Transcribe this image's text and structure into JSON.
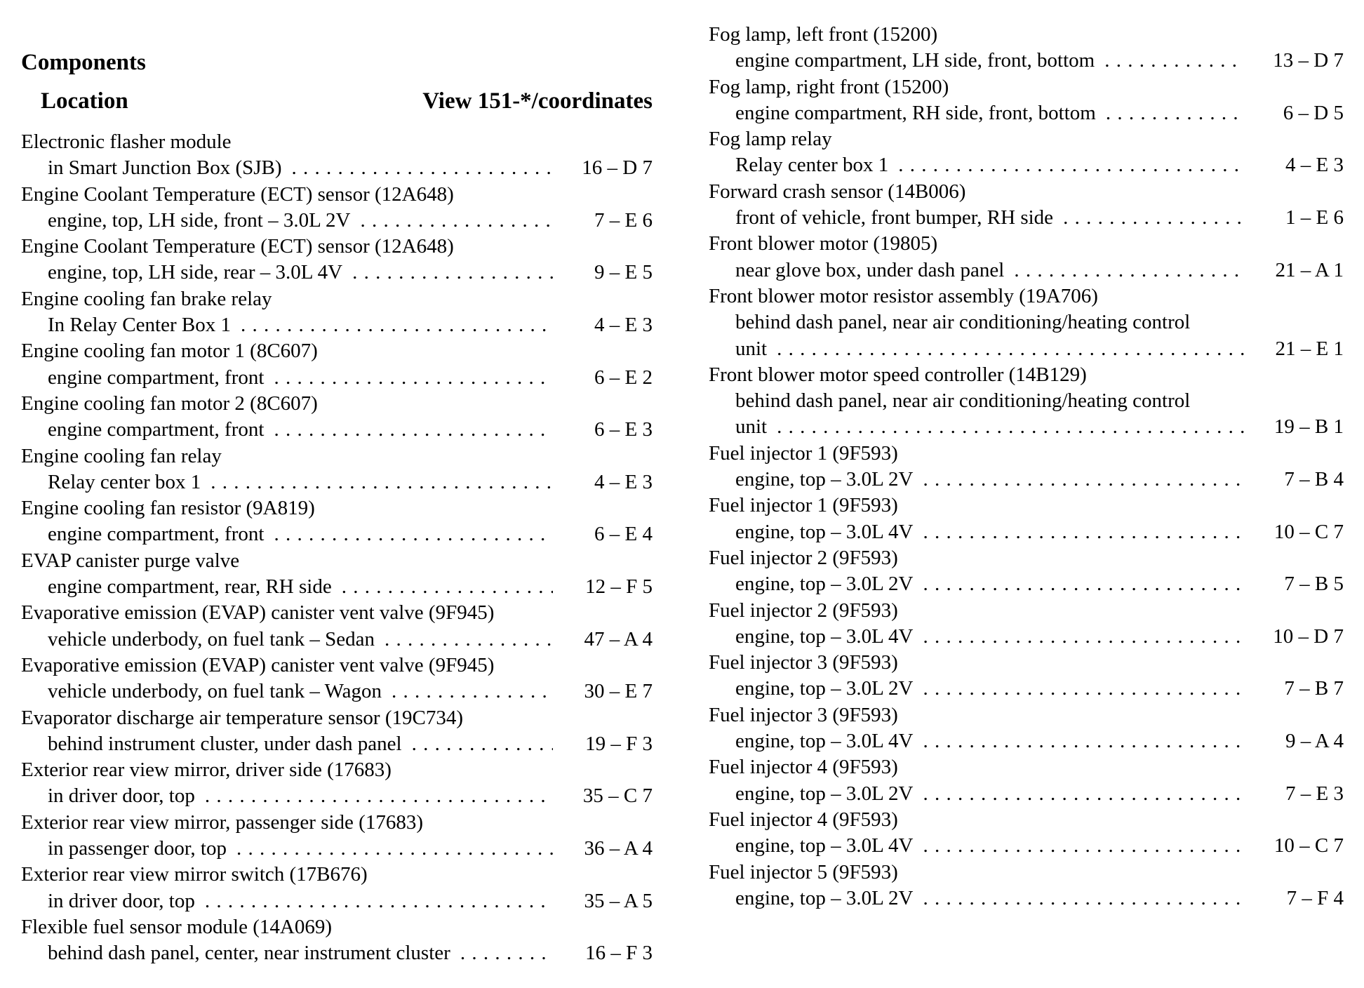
{
  "page": {
    "title": "Components",
    "column_headers": {
      "location": "Location",
      "view": "View 151-*/coordinates"
    }
  },
  "columns": {
    "left": {
      "entries": [
        {
          "name": "Electronic flasher module",
          "location_lines": [
            "in Smart Junction Box (SJB)"
          ],
          "coord": "16 – D 7"
        },
        {
          "name": "Engine Coolant Temperature (ECT) sensor (12A648)",
          "location_lines": [
            "engine, top, LH side, front – 3.0L 2V"
          ],
          "coord": "7 – E 6"
        },
        {
          "name": "Engine Coolant Temperature (ECT) sensor (12A648)",
          "location_lines": [
            "engine, top, LH side, rear – 3.0L 4V"
          ],
          "coord": "9 – E 5"
        },
        {
          "name": "Engine cooling fan brake relay",
          "location_lines": [
            "In Relay Center Box 1"
          ],
          "coord": "4 – E 3"
        },
        {
          "name": "Engine cooling fan motor 1 (8C607)",
          "location_lines": [
            "engine compartment, front"
          ],
          "coord": "6 – E 2"
        },
        {
          "name": "Engine cooling fan motor 2 (8C607)",
          "location_lines": [
            "engine compartment, front"
          ],
          "coord": "6 – E 3"
        },
        {
          "name": "Engine cooling fan relay",
          "location_lines": [
            "Relay center box 1"
          ],
          "coord": "4 – E 3"
        },
        {
          "name": "Engine cooling fan resistor (9A819)",
          "location_lines": [
            "engine compartment, front"
          ],
          "coord": "6 – E 4"
        },
        {
          "name": "EVAP canister purge valve",
          "location_lines": [
            "engine compartment, rear, RH side"
          ],
          "coord": "12 – F 5"
        },
        {
          "name": "Evaporative emission (EVAP) canister vent valve (9F945)",
          "location_lines": [
            "vehicle underbody, on fuel tank – Sedan"
          ],
          "coord": "47 – A 4"
        },
        {
          "name": "Evaporative emission (EVAP) canister vent valve (9F945)",
          "location_lines": [
            "vehicle underbody, on fuel tank – Wagon"
          ],
          "coord": "30 – E 7"
        },
        {
          "name": "Evaporator discharge air temperature sensor (19C734)",
          "location_lines": [
            "behind instrument cluster, under dash panel"
          ],
          "coord": "19 – F 3"
        },
        {
          "name": "Exterior rear view mirror, driver side (17683)",
          "location_lines": [
            "in driver door, top"
          ],
          "coord": "35 – C 7"
        },
        {
          "name": "Exterior rear view mirror, passenger side (17683)",
          "location_lines": [
            "in passenger door, top"
          ],
          "coord": "36 – A 4"
        },
        {
          "name": "Exterior rear view mirror switch (17B676)",
          "location_lines": [
            "in driver door, top"
          ],
          "coord": "35 – A 5"
        },
        {
          "name": "Flexible fuel sensor module (14A069)",
          "location_lines": [
            "behind dash panel, center, near instrument cluster"
          ],
          "coord": "16 – F 3"
        }
      ]
    },
    "right": {
      "entries": [
        {
          "name": "Fog lamp, left front (15200)",
          "location_lines": [
            "engine compartment, LH side, front, bottom"
          ],
          "coord": "13 – D 7"
        },
        {
          "name": "Fog lamp, right front (15200)",
          "location_lines": [
            "engine compartment, RH side, front, bottom"
          ],
          "coord": "6 – D 5"
        },
        {
          "name": "Fog lamp relay",
          "location_lines": [
            "Relay center box 1"
          ],
          "coord": "4 – E 3"
        },
        {
          "name": "Forward crash sensor (14B006)",
          "location_lines": [
            "front of vehicle, front bumper, RH side"
          ],
          "coord": "1 – E 6"
        },
        {
          "name": "Front blower motor (19805)",
          "location_lines": [
            "near glove box, under dash panel"
          ],
          "coord": "21 – A 1"
        },
        {
          "name": "Front blower motor resistor assembly (19A706)",
          "location_lines": [
            "behind dash panel, near air conditioning/heating control",
            "unit"
          ],
          "coord": "21 – E 1"
        },
        {
          "name": "Front blower motor speed controller (14B129)",
          "location_lines": [
            "behind dash panel, near air conditioning/heating control",
            "unit"
          ],
          "coord": "19 – B 1"
        },
        {
          "name": "Fuel injector 1 (9F593)",
          "location_lines": [
            "engine, top – 3.0L 2V"
          ],
          "coord": "7 – B 4"
        },
        {
          "name": "Fuel injector 1 (9F593)",
          "location_lines": [
            "engine, top – 3.0L 4V"
          ],
          "coord": "10 – C 7"
        },
        {
          "name": "Fuel injector 2 (9F593)",
          "location_lines": [
            "engine, top – 3.0L 2V"
          ],
          "coord": "7 – B 5"
        },
        {
          "name": "Fuel injector 2 (9F593)",
          "location_lines": [
            "engine, top – 3.0L 4V"
          ],
          "coord": "10 – D 7"
        },
        {
          "name": "Fuel injector 3 (9F593)",
          "location_lines": [
            "engine, top – 3.0L 2V"
          ],
          "coord": "7 – B 7"
        },
        {
          "name": "Fuel injector 3 (9F593)",
          "location_lines": [
            "engine, top – 3.0L 4V"
          ],
          "coord": "9 – A 4"
        },
        {
          "name": "Fuel injector 4 (9F593)",
          "location_lines": [
            "engine, top – 3.0L 2V"
          ],
          "coord": "7 – E 3"
        },
        {
          "name": "Fuel injector 4 (9F593)",
          "location_lines": [
            "engine, top – 3.0L 4V"
          ],
          "coord": "10 – C 7"
        },
        {
          "name": "Fuel injector 5 (9F593)",
          "location_lines": [
            "engine, top – 3.0L 2V"
          ],
          "coord": "7 – F 4"
        }
      ]
    }
  }
}
